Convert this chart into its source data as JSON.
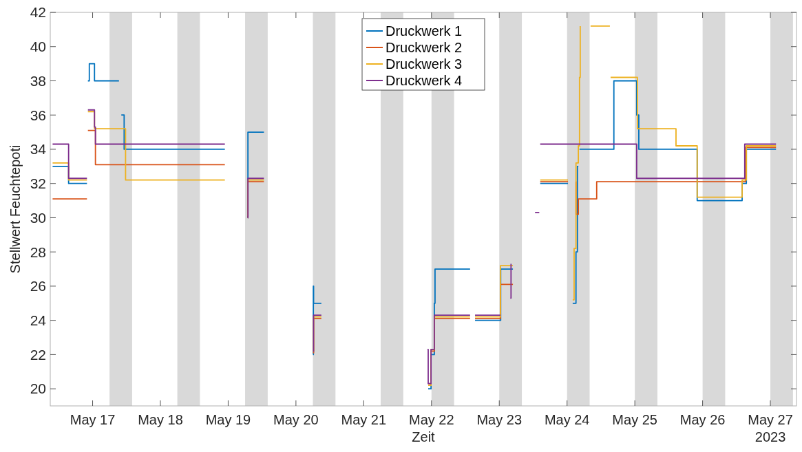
{
  "chart_data": {
    "type": "step",
    "xlabel": "Zeit",
    "ylabel": "Stellwert Feuchtepoti",
    "xlim": [
      "2023-05-16T09:00",
      "2023-05-27T09:15"
    ],
    "xticks": [
      {
        "value": "2023-05-17",
        "label": "May 17"
      },
      {
        "value": "2023-05-18",
        "label": "May 18"
      },
      {
        "value": "2023-05-19",
        "label": "May 19"
      },
      {
        "value": "2023-05-20",
        "label": "May 20"
      },
      {
        "value": "2023-05-21",
        "label": "May 21"
      },
      {
        "value": "2023-05-22",
        "label": "May 22"
      },
      {
        "value": "2023-05-23",
        "label": "May 23"
      },
      {
        "value": "2023-05-24",
        "label": "May 24"
      },
      {
        "value": "2023-05-25",
        "label": "May 25"
      },
      {
        "value": "2023-05-26",
        "label": "May 26"
      },
      {
        "value": "2023-05-27",
        "label": "May 27\n2023"
      }
    ],
    "ylim": [
      19,
      42
    ],
    "yticks": [
      20,
      22,
      24,
      26,
      28,
      30,
      32,
      34,
      36,
      38,
      40,
      42
    ],
    "grid": false,
    "legend": "top",
    "line_style": "solid",
    "marker": "none",
    "bands": [
      {
        "axis": "x",
        "from": "2023-05-17T06:00",
        "to": "2023-05-17T14:00",
        "color": "#d9d9d9"
      },
      {
        "axis": "x",
        "from": "2023-05-18T06:00",
        "to": "2023-05-18T14:00",
        "color": "#d9d9d9"
      },
      {
        "axis": "x",
        "from": "2023-05-19T06:00",
        "to": "2023-05-19T14:00",
        "color": "#d9d9d9"
      },
      {
        "axis": "x",
        "from": "2023-05-20T06:00",
        "to": "2023-05-20T14:00",
        "color": "#d9d9d9"
      },
      {
        "axis": "x",
        "from": "2023-05-21T06:00",
        "to": "2023-05-21T14:00",
        "color": "#d9d9d9"
      },
      {
        "axis": "x",
        "from": "2023-05-22T00:00",
        "to": "2023-05-22T08:00",
        "color": "#d9d9d9"
      },
      {
        "axis": "x",
        "from": "2023-05-23T00:00",
        "to": "2023-05-23T08:00",
        "color": "#d9d9d9"
      },
      {
        "axis": "x",
        "from": "2023-05-24T00:00",
        "to": "2023-05-24T08:00",
        "color": "#d9d9d9"
      },
      {
        "axis": "x",
        "from": "2023-05-25T00:00",
        "to": "2023-05-25T08:00",
        "color": "#d9d9d9"
      },
      {
        "axis": "x",
        "from": "2023-05-26T00:00",
        "to": "2023-05-26T08:00",
        "color": "#d9d9d9"
      },
      {
        "axis": "x",
        "from": "2023-05-27T00:00",
        "to": "2023-05-27T08:00",
        "color": "#d9d9d9"
      }
    ],
    "series": [
      {
        "name": "Druckwerk 1",
        "color": "#0072bd",
        "x": [
          "2023-05-16T09:50",
          "2023-05-16T15:30",
          "2023-05-16T22:00",
          null,
          "2023-05-16T22:20",
          "2023-05-16T22:50",
          "2023-05-17T00:40",
          "2023-05-17T09:20",
          null,
          "2023-05-17T10:10",
          "2023-05-17T11:10",
          "2023-05-18T22:50",
          null,
          "2023-05-19T06:55",
          "2023-05-19T07:00",
          "2023-05-19T12:40",
          null,
          "2023-05-20T06:05",
          "2023-05-20T06:10",
          "2023-05-20T06:15",
          "2023-05-20T09:00",
          null,
          "2023-05-21T22:50",
          "2023-05-21T23:50",
          "2023-05-22T01:00",
          "2023-05-22T01:15",
          "2023-05-22T13:40",
          null,
          "2023-05-22T15:25",
          "2023-05-23T00:25",
          "2023-05-23T00:30",
          "2023-05-23T04:50",
          null,
          "2023-05-23T14:30",
          "2023-05-24T00:20",
          null,
          "2023-05-24T02:00",
          "2023-05-24T03:10",
          "2023-05-24T03:40",
          "2023-05-24T04:00",
          null,
          "2023-05-24T04:25",
          "2023-05-24T16:35",
          "2023-05-25T00:40",
          "2023-05-25T01:25",
          "2023-05-25T22:05",
          "2023-05-26T14:00",
          "2023-05-26T15:30",
          "2023-05-27T02:00"
        ],
        "values": [
          33,
          32,
          32,
          null,
          38,
          39,
          38,
          38,
          null,
          36,
          34,
          34,
          null,
          30,
          35,
          35,
          null,
          22,
          26,
          25,
          25,
          null,
          20,
          22,
          25,
          27,
          27,
          null,
          24,
          24,
          27,
          27,
          null,
          32,
          32,
          null,
          25,
          28,
          33,
          33,
          null,
          34,
          38,
          36,
          34,
          31,
          32,
          34,
          34
        ]
      },
      {
        "name": "Druckwerk 2",
        "color": "#d95319",
        "x": [
          "2023-05-16T09:50",
          "2023-05-16T22:00",
          null,
          "2023-05-16T22:20",
          "2023-05-17T01:00",
          "2023-05-18T22:50",
          null,
          "2023-05-19T06:55",
          "2023-05-19T07:00",
          "2023-05-19T12:40",
          null,
          "2023-05-20T06:05",
          "2023-05-20T06:15",
          "2023-05-20T09:00",
          null,
          "2023-05-21T22:50",
          "2023-05-21T23:50",
          "2023-05-22T01:00",
          "2023-05-22T13:40",
          null,
          "2023-05-22T15:25",
          "2023-05-23T00:25",
          "2023-05-23T04:50",
          null,
          "2023-05-23T14:30",
          "2023-05-24T00:20",
          null,
          "2023-05-24T03:00",
          "2023-05-24T03:10",
          "2023-05-24T04:00",
          "2023-05-24T10:30",
          "2023-05-26T15:10",
          "2023-05-27T02:00"
        ],
        "values": [
          31.1,
          31.1,
          null,
          35.1,
          33.1,
          33.1,
          null,
          30,
          32.1,
          32.1,
          null,
          22.1,
          24.1,
          24.1,
          null,
          20.3,
          22.2,
          24.1,
          24.1,
          null,
          24.1,
          26.1,
          26.1,
          null,
          32.1,
          32.1,
          null,
          32.1,
          30.2,
          31.1,
          32.1,
          34.1,
          34.1
        ]
      },
      {
        "name": "Druckwerk 3",
        "color": "#edb120",
        "x": [
          "2023-05-16T09:50",
          "2023-05-16T15:30",
          "2023-05-16T22:00",
          null,
          "2023-05-16T22:20",
          "2023-05-17T00:40",
          "2023-05-17T11:40",
          "2023-05-18T22:50",
          null,
          "2023-05-19T06:55",
          "2023-05-19T07:00",
          "2023-05-19T12:40",
          null,
          "2023-05-20T06:05",
          "2023-05-20T06:15",
          "2023-05-20T09:00",
          null,
          "2023-05-21T22:50",
          "2023-05-21T23:50",
          "2023-05-22T01:00",
          "2023-05-22T13:40",
          null,
          "2023-05-22T15:25",
          "2023-05-23T00:25",
          "2023-05-23T04:50",
          null,
          "2023-05-23T14:30",
          "2023-05-24T00:20",
          null,
          "2023-05-24T02:00",
          "2023-05-24T02:30",
          "2023-05-24T03:10",
          "2023-05-24T04:00",
          "2023-05-24T04:25",
          "2023-05-24T04:40",
          null,
          "2023-05-24T08:20",
          "2023-05-24T15:10",
          null,
          "2023-05-24T15:25",
          "2023-05-25T00:55",
          "2023-05-25T14:35",
          "2023-05-25T22:05",
          "2023-05-26T14:00",
          "2023-05-26T15:30",
          "2023-05-27T02:00"
        ],
        "values": [
          33.2,
          32.2,
          32.2,
          null,
          36.2,
          35.2,
          32.2,
          32.2,
          null,
          30.1,
          32.2,
          32.2,
          null,
          22.2,
          24.2,
          24.2,
          null,
          20.2,
          22.3,
          24.2,
          24.2,
          null,
          24.2,
          27.2,
          27.2,
          null,
          32.2,
          32.2,
          null,
          25.2,
          28.2,
          33.2,
          34.2,
          38.2,
          41.2,
          null,
          41.2,
          41.2,
          null,
          38.2,
          35.2,
          34.2,
          31.2,
          32.2,
          34.2,
          34.2
        ]
      },
      {
        "name": "Druckwerk 4",
        "color": "#7e2f8e",
        "x": [
          "2023-05-16T09:50",
          "2023-05-16T15:30",
          "2023-05-16T22:00",
          null,
          "2023-05-16T22:20",
          "2023-05-17T00:40",
          "2023-05-17T01:00",
          "2023-05-18T22:50",
          null,
          "2023-05-19T06:55",
          "2023-05-19T07:00",
          "2023-05-19T12:40",
          null,
          "2023-05-20T06:05",
          "2023-05-20T06:15",
          "2023-05-20T09:00",
          null,
          "2023-05-21T22:35",
          "2023-05-21T22:50",
          "2023-05-21T23:50",
          "2023-05-22T01:00",
          "2023-05-22T13:40",
          null,
          "2023-05-22T15:25",
          "2023-05-23T00:25",
          null,
          "2023-05-23T03:55",
          "2023-05-23T04:10",
          null,
          "2023-05-23T12:40",
          "2023-05-23T14:10",
          null,
          "2023-05-23T14:30",
          "2023-05-25T00:40",
          "2023-05-26T14:55",
          "2023-05-27T02:00"
        ],
        "values": [
          34.3,
          32.3,
          32.3,
          null,
          36.3,
          35.3,
          34.3,
          34.3,
          null,
          30,
          32.3,
          32.3,
          null,
          22.2,
          24.3,
          24.3,
          null,
          22.3,
          20.3,
          22.3,
          24.3,
          24.3,
          null,
          24.3,
          24.3,
          null,
          25.3,
          27.3,
          null,
          30.3,
          30.3,
          null,
          34.3,
          32.3,
          34.3,
          34.3
        ]
      }
    ]
  }
}
